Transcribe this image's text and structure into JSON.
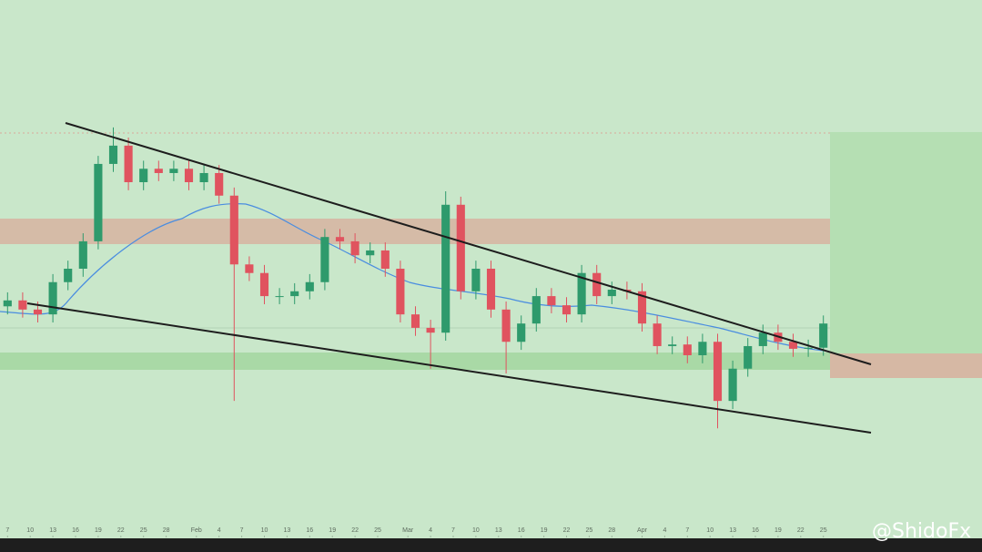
{
  "chart_data": {
    "type": "candlestick",
    "x": [
      0,
      2,
      4,
      6,
      8,
      10,
      12,
      14,
      16,
      18,
      20,
      22,
      24,
      26,
      28,
      30,
      32,
      34,
      36,
      38,
      40,
      42,
      44,
      46,
      48,
      50,
      52,
      54,
      56,
      58,
      60,
      62,
      64,
      66,
      68,
      70,
      72,
      74,
      76,
      78,
      80,
      82,
      84,
      86,
      88,
      90,
      92,
      94,
      96,
      98,
      100,
      102,
      104,
      106,
      108
    ],
    "open": [
      43.0,
      44.1,
      42.4,
      41.5,
      47.5,
      50.0,
      55.1,
      69.5,
      72.9,
      66.1,
      68.6,
      67.8,
      68.6,
      66.1,
      67.8,
      63.6,
      50.8,
      49.2,
      44.9,
      44.9,
      45.8,
      47.5,
      55.9,
      55.1,
      52.5,
      53.4,
      50.0,
      41.5,
      39.0,
      38.1,
      61.9,
      45.8,
      50.0,
      42.4,
      36.4,
      39.8,
      44.9,
      43.2,
      41.5,
      49.2,
      44.9,
      46.1,
      45.8,
      39.8,
      35.6,
      35.9,
      33.9,
      36.4,
      25.4,
      31.4,
      35.6,
      38.1,
      36.4,
      35.1,
      35.3
    ],
    "high": [
      45.6,
      45.6,
      43.9,
      49.0,
      51.5,
      56.6,
      71.0,
      76.3,
      74.4,
      70.1,
      70.1,
      70.1,
      70.1,
      69.3,
      69.3,
      65.1,
      52.3,
      50.7,
      46.4,
      47.3,
      49.0,
      57.4,
      57.4,
      56.6,
      54.9,
      54.9,
      51.5,
      43.0,
      40.5,
      64.4,
      63.4,
      51.5,
      51.5,
      43.9,
      41.3,
      46.4,
      46.4,
      44.7,
      50.7,
      50.7,
      47.6,
      47.6,
      47.3,
      41.3,
      37.4,
      37.4,
      37.9,
      37.9,
      32.9,
      37.1,
      39.6,
      39.6,
      37.9,
      36.8,
      41.3
    ],
    "low": [
      41.5,
      40.9,
      40.0,
      40.0,
      46.0,
      48.5,
      53.6,
      68.0,
      64.6,
      64.6,
      66.3,
      66.3,
      64.6,
      64.6,
      62.1,
      25.4,
      47.7,
      43.4,
      43.4,
      43.4,
      44.3,
      46.0,
      53.6,
      51.0,
      51.0,
      48.5,
      40.0,
      37.5,
      31.4,
      36.6,
      44.3,
      44.3,
      40.9,
      30.5,
      34.9,
      38.3,
      41.7,
      40.0,
      40.0,
      43.4,
      43.4,
      44.3,
      38.3,
      34.1,
      34.1,
      32.4,
      32.4,
      20.3,
      23.9,
      29.9,
      34.1,
      34.9,
      33.6,
      33.6,
      33.8
    ],
    "close": [
      44.1,
      42.4,
      41.5,
      47.5,
      50.0,
      55.1,
      69.5,
      72.9,
      66.1,
      68.6,
      67.8,
      68.6,
      66.1,
      67.8,
      63.6,
      50.8,
      49.2,
      44.9,
      44.9,
      45.8,
      47.5,
      55.9,
      55.1,
      52.5,
      53.4,
      50.0,
      41.5,
      39.0,
      38.1,
      61.9,
      45.8,
      50.0,
      42.4,
      36.4,
      39.8,
      44.9,
      43.2,
      41.5,
      49.2,
      44.9,
      46.1,
      45.8,
      39.8,
      35.6,
      35.9,
      33.9,
      36.4,
      25.4,
      31.4,
      35.6,
      38.1,
      36.4,
      35.1,
      35.3,
      39.8
    ],
    "up_color": "#2e9a6c",
    "down_color": "#e0535f",
    "xlim": [
      -1,
      129
    ],
    "ylim": [
      0,
      100
    ],
    "xticks": [
      {
        "value": 0,
        "label": "7"
      },
      {
        "value": 3,
        "label": "10"
      },
      {
        "value": 6,
        "label": "13"
      },
      {
        "value": 9,
        "label": "16"
      },
      {
        "value": 12,
        "label": "19"
      },
      {
        "value": 15,
        "label": "22"
      },
      {
        "value": 18,
        "label": "25"
      },
      {
        "value": 21,
        "label": "28"
      },
      {
        "value": 25,
        "label": "Feb"
      },
      {
        "value": 28,
        "label": "4"
      },
      {
        "value": 31,
        "label": "7"
      },
      {
        "value": 34,
        "label": "10"
      },
      {
        "value": 37,
        "label": "13"
      },
      {
        "value": 40,
        "label": "16"
      },
      {
        "value": 43,
        "label": "19"
      },
      {
        "value": 46,
        "label": "22"
      },
      {
        "value": 49,
        "label": "25"
      },
      {
        "value": 53,
        "label": "Mar"
      },
      {
        "value": 56,
        "label": "4"
      },
      {
        "value": 59,
        "label": "7"
      },
      {
        "value": 62,
        "label": "10"
      },
      {
        "value": 65,
        "label": "13"
      },
      {
        "value": 68,
        "label": "16"
      },
      {
        "value": 71,
        "label": "19"
      },
      {
        "value": 74,
        "label": "22"
      },
      {
        "value": 77,
        "label": "25"
      },
      {
        "value": 80,
        "label": "28"
      },
      {
        "value": 84,
        "label": "Apr"
      },
      {
        "value": 87,
        "label": "4"
      },
      {
        "value": 90,
        "label": "7"
      },
      {
        "value": 93,
        "label": "10"
      },
      {
        "value": 96,
        "label": "13"
      },
      {
        "value": 99,
        "label": "16"
      },
      {
        "value": 102,
        "label": "19"
      },
      {
        "value": 105,
        "label": "22"
      },
      {
        "value": 108,
        "label": "25"
      }
    ]
  },
  "watermark": "@ShidoFx"
}
